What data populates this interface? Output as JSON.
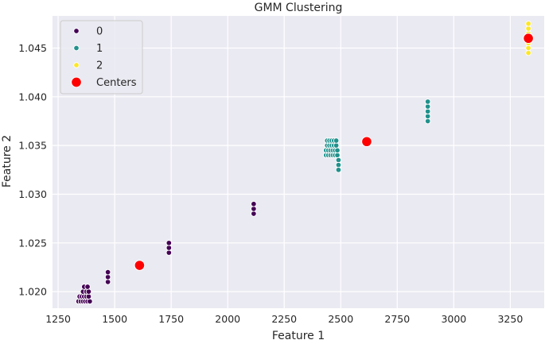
{
  "chart_data": {
    "type": "scatter",
    "title": "GMM Clustering",
    "xlabel": "Feature 1",
    "ylabel": "Feature 2",
    "xlim": [
      1225,
      3400
    ],
    "ylim": [
      1.0183,
      1.0483
    ],
    "xticks": [
      1250,
      1500,
      1750,
      2000,
      2250,
      2500,
      2750,
      3000,
      3250
    ],
    "xtick_labels": [
      "1250",
      "1500",
      "1750",
      "2000",
      "2250",
      "2500",
      "2750",
      "3000",
      "3250"
    ],
    "yticks": [
      1.02,
      1.025,
      1.03,
      1.035,
      1.04,
      1.045
    ],
    "ytick_labels": [
      "1.020",
      "1.025",
      "1.030",
      "1.035",
      "1.040",
      "1.045"
    ],
    "grid": true,
    "legend_position": "top-left",
    "colors": {
      "0": "#440154",
      "1": "#21918c",
      "2": "#fde725",
      "centers": "#ff0000",
      "background": "#eaeaf2",
      "grid": "#ffffff"
    },
    "legend": [
      {
        "label": "0",
        "color": "#440154",
        "marker": "small"
      },
      {
        "label": "1",
        "color": "#21918c",
        "marker": "small"
      },
      {
        "label": "2",
        "color": "#fde725",
        "marker": "small"
      },
      {
        "label": "Centers",
        "color": "#ff0000",
        "marker": "large"
      }
    ],
    "series": [
      {
        "name": "0",
        "color": "#440154",
        "points": [
          [
            1340,
            1.019
          ],
          [
            1350,
            1.019
          ],
          [
            1360,
            1.019
          ],
          [
            1370,
            1.019
          ],
          [
            1380,
            1.019
          ],
          [
            1390,
            1.019
          ],
          [
            1345,
            1.0195
          ],
          [
            1355,
            1.0195
          ],
          [
            1365,
            1.0195
          ],
          [
            1375,
            1.0195
          ],
          [
            1385,
            1.0195
          ],
          [
            1360,
            1.02
          ],
          [
            1375,
            1.02
          ],
          [
            1385,
            1.02
          ],
          [
            1365,
            1.0205
          ],
          [
            1380,
            1.0205
          ],
          [
            1470,
            1.021
          ],
          [
            1470,
            1.0215
          ],
          [
            1470,
            1.022
          ],
          [
            1740,
            1.024
          ],
          [
            1740,
            1.0245
          ],
          [
            1740,
            1.025
          ],
          [
            2115,
            1.028
          ],
          [
            2115,
            1.0285
          ],
          [
            2115,
            1.029
          ]
        ]
      },
      {
        "name": "1",
        "color": "#21918c",
        "points": [
          [
            2435,
            1.034
          ],
          [
            2445,
            1.034
          ],
          [
            2455,
            1.034
          ],
          [
            2465,
            1.034
          ],
          [
            2475,
            1.034
          ],
          [
            2485,
            1.034
          ],
          [
            2435,
            1.0345
          ],
          [
            2445,
            1.0345
          ],
          [
            2455,
            1.0345
          ],
          [
            2465,
            1.0345
          ],
          [
            2475,
            1.0345
          ],
          [
            2485,
            1.0345
          ],
          [
            2440,
            1.035
          ],
          [
            2450,
            1.035
          ],
          [
            2460,
            1.035
          ],
          [
            2470,
            1.035
          ],
          [
            2480,
            1.035
          ],
          [
            2440,
            1.0355
          ],
          [
            2450,
            1.0355
          ],
          [
            2460,
            1.0355
          ],
          [
            2470,
            1.0355
          ],
          [
            2480,
            1.0355
          ],
          [
            2490,
            1.0335
          ],
          [
            2490,
            1.033
          ],
          [
            2490,
            1.0325
          ],
          [
            2885,
            1.0375
          ],
          [
            2885,
            1.038
          ],
          [
            2885,
            1.0385
          ],
          [
            2885,
            1.039
          ],
          [
            2885,
            1.0395
          ]
        ]
      },
      {
        "name": "2",
        "color": "#fde725",
        "points": [
          [
            3330,
            1.0445
          ],
          [
            3330,
            1.045
          ],
          [
            3330,
            1.0455
          ],
          [
            3330,
            1.046
          ],
          [
            3330,
            1.0465
          ],
          [
            3330,
            1.047
          ],
          [
            3330,
            1.0475
          ]
        ]
      }
    ],
    "centers": {
      "name": "Centers",
      "color": "#ff0000",
      "points": [
        [
          1610,
          1.0227
        ],
        [
          2615,
          1.0354
        ],
        [
          3330,
          1.046
        ]
      ]
    }
  }
}
